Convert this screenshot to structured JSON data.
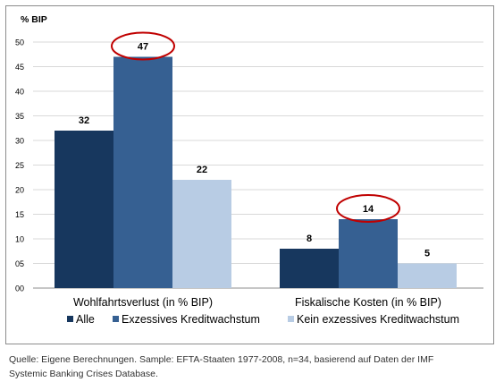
{
  "chart_data": {
    "type": "bar",
    "ylabel": "% BIP",
    "ylim": [
      0,
      50
    ],
    "yticks": [
      "00",
      "05",
      "10",
      "15",
      "20",
      "25",
      "30",
      "35",
      "40",
      "45",
      "50"
    ],
    "categories": [
      "Wohlfahrtsverlust (in % BIP)",
      "Fiskalische Kosten (in % BIP)"
    ],
    "series": [
      {
        "name": "Alle",
        "values": [
          32,
          8
        ],
        "labels": [
          "32",
          "8"
        ],
        "color": "#17375e"
      },
      {
        "name": "Exzessives Kreditwachstum",
        "values": [
          47,
          14
        ],
        "labels": [
          "47",
          "14"
        ],
        "color": "#366092"
      },
      {
        "name": "Kein exzessives Kreditwachstum",
        "values": [
          22,
          5
        ],
        "labels": [
          "22",
          "5"
        ],
        "color": "#b8cce4"
      }
    ],
    "highlight_series": 1,
    "highlight_color": "#c00000",
    "grid": true,
    "legend_position": "bottom"
  },
  "source_note": {
    "line1": "Quelle: Eigene Berechnungen. Sample: EFTA-Staaten 1977-2008, n=34, basierend auf Daten der IMF",
    "line2": "Systemic Banking Crises Database."
  }
}
